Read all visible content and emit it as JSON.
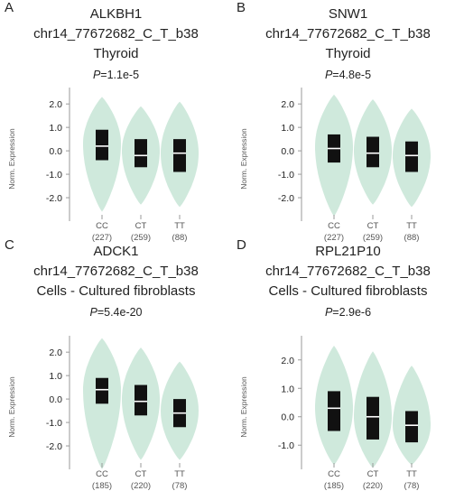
{
  "chart_data": [
    {
      "type": "violin",
      "panel": "A",
      "title": [
        "ALKBH1",
        "chr14_77672682_C_T_b38",
        "Thyroid"
      ],
      "p_label": "P",
      "p_value": "=1.1e-5",
      "ylabel": "Norm. Expression",
      "yticks": [
        "2.0",
        "1.0",
        "0.0",
        "-1.0",
        "-2.0"
      ],
      "ylim": [
        -3.0,
        2.7
      ],
      "categories": [
        "CC",
        "CT",
        "TT"
      ],
      "counts": [
        "(227)",
        "(259)",
        "(88)"
      ],
      "violins": [
        {
          "min": -2.6,
          "max": 2.3,
          "widest_at": 0.3,
          "q1": -0.4,
          "median": 0.2,
          "q3": 0.9
        },
        {
          "min": -2.3,
          "max": 1.9,
          "widest_at": 0.0,
          "q1": -0.7,
          "median": -0.2,
          "q3": 0.5
        },
        {
          "min": -2.4,
          "max": 2.1,
          "widest_at": -0.1,
          "q1": -0.9,
          "median": -0.1,
          "q3": 0.5
        }
      ]
    },
    {
      "type": "violin",
      "panel": "B",
      "title": [
        "SNW1",
        "chr14_77672682_C_T_b38",
        "Thyroid"
      ],
      "p_label": "P",
      "p_value": "=4.8e-5",
      "ylabel": "Norm. Expression",
      "yticks": [
        "2.0",
        "1.0",
        "0.0",
        "-1.0",
        "-2.0"
      ],
      "ylim": [
        -3.0,
        2.7
      ],
      "categories": [
        "CC",
        "CT",
        "TT"
      ],
      "counts": [
        "(227)",
        "(259)",
        "(88)"
      ],
      "violins": [
        {
          "min": -2.8,
          "max": 2.4,
          "widest_at": 0.2,
          "q1": -0.5,
          "median": 0.1,
          "q3": 0.7
        },
        {
          "min": -2.3,
          "max": 2.2,
          "widest_at": 0.0,
          "q1": -0.7,
          "median": -0.1,
          "q3": 0.6
        },
        {
          "min": -2.4,
          "max": 1.8,
          "widest_at": -0.2,
          "q1": -0.9,
          "median": -0.2,
          "q3": 0.4
        }
      ]
    },
    {
      "type": "violin",
      "panel": "C",
      "title": [
        "ADCK1",
        "chr14_77672682_C_T_b38",
        "Cells - Cultured fibroblasts"
      ],
      "p_label": "P",
      "p_value": "=5.4e-20",
      "ylabel": "Norm. Expression",
      "yticks": [
        "2.0",
        "1.0",
        "0.0",
        "-1.0",
        "-2.0"
      ],
      "ylim": [
        -3.0,
        2.7
      ],
      "categories": [
        "CC",
        "CT",
        "TT"
      ],
      "counts": [
        "(185)",
        "(220)",
        "(78)"
      ],
      "violins": [
        {
          "min": -3.0,
          "max": 2.6,
          "widest_at": 0.4,
          "q1": -0.2,
          "median": 0.4,
          "q3": 0.9
        },
        {
          "min": -2.6,
          "max": 2.2,
          "widest_at": 0.0,
          "q1": -0.7,
          "median": -0.1,
          "q3": 0.6
        },
        {
          "min": -2.6,
          "max": 1.6,
          "widest_at": -0.5,
          "q1": -1.2,
          "median": -0.6,
          "q3": 0.0
        }
      ]
    },
    {
      "type": "violin",
      "panel": "D",
      "title": [
        "RPL21P10",
        "chr14_77672682_C_T_b38",
        "Cells - Cultured fibroblasts"
      ],
      "p_label": "P",
      "p_value": "=2.9e-6",
      "ylabel": "Norm. Expression",
      "yticks": [
        "2.0",
        "1.0",
        "0.0",
        "-1.0"
      ],
      "ylim": [
        -1.85,
        2.85
      ],
      "categories": [
        "CC",
        "CT",
        "TT"
      ],
      "counts": [
        "(185)",
        "(220)",
        "(78)"
      ],
      "violins": [
        {
          "min": -1.7,
          "max": 2.5,
          "widest_at": 0.3,
          "q1": -0.5,
          "median": 0.3,
          "q3": 0.9
        },
        {
          "min": -1.8,
          "max": 2.3,
          "widest_at": 0.0,
          "q1": -0.8,
          "median": 0.0,
          "q3": 0.7
        },
        {
          "min": -1.7,
          "max": 1.8,
          "widest_at": -0.3,
          "q1": -0.9,
          "median": -0.3,
          "q3": 0.2
        }
      ]
    }
  ],
  "colors": {
    "violin_fill": "#cfe9dc",
    "box": "#111111",
    "median_line": "#ffffff",
    "axis": "#9a9a9a",
    "tick_text": "#222222",
    "label_text": "#555555"
  }
}
